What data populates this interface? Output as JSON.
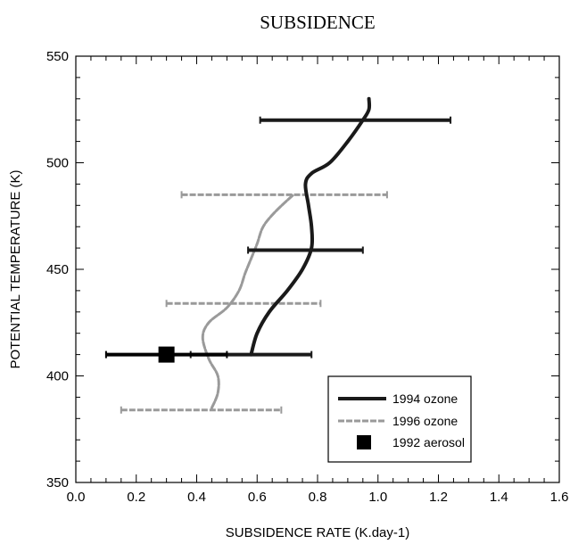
{
  "chart_data": {
    "type": "line",
    "title": "SUBSIDENCE",
    "xlabel": "SUBSIDENCE RATE (K.day-1)",
    "ylabel": "POTENTIAL TEMPERATURE (K)",
    "xlim": [
      0.0,
      1.6
    ],
    "ylim": [
      350,
      550
    ],
    "xticks": [
      0.0,
      0.2,
      0.4,
      0.6,
      0.8,
      1.0,
      1.2,
      1.4,
      1.6
    ],
    "xtick_labels": [
      "0.0",
      "0.2",
      "0.4",
      "0.6",
      "0.8",
      "1.0",
      "1.2",
      "1.4",
      "1.6"
    ],
    "yticks": [
      350,
      400,
      450,
      500,
      550
    ],
    "ytick_labels": [
      "350",
      "400",
      "450",
      "500",
      "550"
    ],
    "grid": false,
    "legend_position": "bottom-right",
    "series": [
      {
        "name": "1994 ozone",
        "color": "#1a1a1a",
        "style": "solid",
        "x": [
          0.58,
          0.6,
          0.64,
          0.7,
          0.75,
          0.78,
          0.78,
          0.77,
          0.76,
          0.78,
          0.84,
          0.9,
          0.95,
          0.97,
          0.97
        ],
        "y": [
          410,
          420,
          430,
          440,
          450,
          460,
          470,
          480,
          490,
          495,
          500,
          510,
          520,
          525,
          530
        ],
        "errorbars": [
          {
            "y": 520,
            "xmin": 0.61,
            "xmax": 1.24
          },
          {
            "y": 459,
            "xmin": 0.57,
            "xmax": 0.95
          },
          {
            "y": 410,
            "xmin": 0.38,
            "xmax": 0.78
          }
        ]
      },
      {
        "name": "1996 ozone",
        "color": "#9a9a9a",
        "style": "dashed",
        "x": [
          0.45,
          0.47,
          0.47,
          0.44,
          0.42,
          0.44,
          0.5,
          0.54,
          0.56,
          0.58,
          0.6,
          0.62,
          0.66,
          0.72
        ],
        "y": [
          385,
          392,
          400,
          408,
          418,
          425,
          432,
          440,
          448,
          455,
          462,
          470,
          477,
          485
        ],
        "errorbars": [
          {
            "y": 485,
            "xmin": 0.35,
            "xmax": 1.03
          },
          {
            "y": 434,
            "xmin": 0.3,
            "xmax": 0.81
          },
          {
            "y": 384,
            "xmin": 0.15,
            "xmax": 0.68
          }
        ]
      },
      {
        "name": "1992 aerosol",
        "color": "#000000",
        "marker": "square",
        "x": [
          0.3
        ],
        "y": [
          410
        ],
        "errorbars": [
          {
            "y": 410,
            "xmin": 0.1,
            "xmax": 0.5
          }
        ]
      }
    ]
  }
}
